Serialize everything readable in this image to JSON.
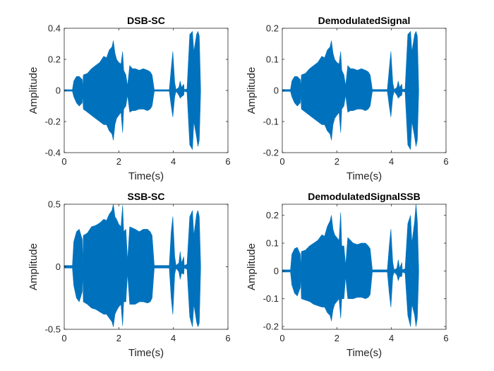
{
  "figure": {
    "background": "#ffffff",
    "signal_color": "#0072bd",
    "axes_color": "#262626"
  },
  "chart_data": [
    {
      "type": "line",
      "title": "DSB-SC",
      "xlabel": "Time(s)",
      "ylabel": "Amplitude",
      "xlim": [
        0,
        6
      ],
      "ylim": [
        -0.4,
        0.4
      ],
      "xticks": [
        0,
        2,
        4,
        6
      ],
      "xtick_labels": [
        "0",
        "2",
        "4",
        "6"
      ],
      "yticks": [
        -0.4,
        -0.2,
        0,
        0.2,
        0.4
      ],
      "ytick_labels": [
        "-0.4",
        "-0.2",
        "0",
        "0.2",
        "0.4"
      ],
      "grid": false,
      "series": [
        {
          "color": "#0072bd",
          "x": [
            0.0,
            0.3,
            0.35,
            0.45,
            0.55,
            0.66,
            0.67,
            0.7,
            0.85,
            1.0,
            1.15,
            1.3,
            1.45,
            1.55,
            1.65,
            1.75,
            1.8,
            1.86,
            1.92,
            2.0,
            2.08,
            2.14,
            2.18,
            2.26,
            2.32,
            2.4,
            2.5,
            2.6,
            2.75,
            2.9,
            3.05,
            3.15,
            3.22,
            3.3,
            3.5,
            3.7,
            3.85,
            3.92,
            3.98,
            4.05,
            4.1,
            4.2,
            4.25,
            4.3,
            4.38,
            4.4,
            4.5,
            4.6,
            4.7,
            4.75,
            4.85,
            4.9,
            4.95,
            5.0
          ],
          "upper": [
            0.005,
            0.005,
            0.06,
            0.09,
            0.09,
            0.07,
            0.005,
            0.1,
            0.11,
            0.14,
            0.16,
            0.18,
            0.22,
            0.21,
            0.26,
            0.28,
            0.32,
            0.24,
            0.2,
            0.18,
            0.17,
            0.25,
            0.13,
            0.1,
            0.03,
            0.16,
            0.14,
            0.14,
            0.13,
            0.14,
            0.13,
            0.12,
            0.1,
            0.005,
            0.005,
            0.005,
            0.005,
            0.14,
            0.25,
            0.05,
            0.005,
            0.02,
            0.06,
            0.02,
            0.04,
            0.005,
            0.01,
            0.36,
            0.38,
            0.25,
            0.36,
            0.38,
            0.35,
            0.005
          ],
          "lower": [
            -0.005,
            -0.005,
            -0.04,
            -0.08,
            -0.1,
            -0.08,
            -0.005,
            -0.12,
            -0.14,
            -0.16,
            -0.18,
            -0.2,
            -0.22,
            -0.22,
            -0.26,
            -0.28,
            -0.32,
            -0.22,
            -0.18,
            -0.16,
            -0.14,
            -0.27,
            -0.12,
            -0.1,
            -0.03,
            -0.14,
            -0.13,
            -0.13,
            -0.12,
            -0.12,
            -0.13,
            -0.12,
            -0.1,
            -0.005,
            -0.005,
            -0.005,
            -0.005,
            -0.1,
            -0.17,
            -0.04,
            -0.005,
            -0.03,
            -0.05,
            -0.04,
            -0.03,
            -0.005,
            -0.01,
            -0.35,
            -0.38,
            -0.2,
            -0.3,
            -0.36,
            -0.32,
            -0.005
          ]
        }
      ]
    },
    {
      "type": "line",
      "title": "DemodulatedSignal",
      "xlabel": "Time(s)",
      "ylabel": "Amplitude",
      "xlim": [
        0,
        6
      ],
      "ylim": [
        -0.2,
        0.2
      ],
      "xticks": [
        0,
        2,
        4,
        6
      ],
      "xtick_labels": [
        "0",
        "2",
        "4",
        "6"
      ],
      "yticks": [
        -0.2,
        -0.1,
        0,
        0.1,
        0.2
      ],
      "ytick_labels": [
        "-0.2",
        "-0.1",
        "0",
        "0.1",
        "0.2"
      ],
      "grid": false,
      "series": [
        {
          "color": "#0072bd",
          "x": [
            0.0,
            0.3,
            0.35,
            0.45,
            0.55,
            0.66,
            0.67,
            0.7,
            0.85,
            1.0,
            1.15,
            1.3,
            1.45,
            1.55,
            1.65,
            1.75,
            1.8,
            1.86,
            1.92,
            2.0,
            2.08,
            2.14,
            2.18,
            2.26,
            2.32,
            2.4,
            2.5,
            2.6,
            2.75,
            2.9,
            3.05,
            3.15,
            3.22,
            3.3,
            3.5,
            3.7,
            3.85,
            3.92,
            3.98,
            4.05,
            4.1,
            4.2,
            4.25,
            4.3,
            4.38,
            4.4,
            4.5,
            4.6,
            4.7,
            4.75,
            4.85,
            4.9,
            4.95,
            5.0
          ],
          "upper": [
            0.003,
            0.003,
            0.03,
            0.045,
            0.045,
            0.035,
            0.003,
            0.05,
            0.055,
            0.07,
            0.08,
            0.09,
            0.11,
            0.105,
            0.13,
            0.14,
            0.16,
            0.12,
            0.1,
            0.09,
            0.085,
            0.125,
            0.065,
            0.05,
            0.015,
            0.08,
            0.07,
            0.07,
            0.065,
            0.07,
            0.065,
            0.06,
            0.05,
            0.003,
            0.003,
            0.003,
            0.003,
            0.07,
            0.125,
            0.025,
            0.003,
            0.01,
            0.03,
            0.01,
            0.02,
            0.003,
            0.005,
            0.18,
            0.19,
            0.125,
            0.18,
            0.19,
            0.175,
            0.003
          ],
          "lower": [
            -0.003,
            -0.003,
            -0.02,
            -0.04,
            -0.05,
            -0.04,
            -0.003,
            -0.06,
            -0.07,
            -0.08,
            -0.09,
            -0.1,
            -0.11,
            -0.11,
            -0.13,
            -0.14,
            -0.16,
            -0.11,
            -0.09,
            -0.08,
            -0.07,
            -0.135,
            -0.06,
            -0.05,
            -0.015,
            -0.07,
            -0.065,
            -0.065,
            -0.06,
            -0.06,
            -0.065,
            -0.06,
            -0.05,
            -0.003,
            -0.003,
            -0.003,
            -0.003,
            -0.05,
            -0.085,
            -0.02,
            -0.003,
            -0.015,
            -0.025,
            -0.02,
            -0.015,
            -0.003,
            -0.005,
            -0.175,
            -0.19,
            -0.1,
            -0.15,
            -0.18,
            -0.16,
            -0.003
          ]
        }
      ]
    },
    {
      "type": "line",
      "title": "SSB-SC",
      "xlabel": "Time(s)",
      "ylabel": "Amplitude",
      "xlim": [
        0,
        6
      ],
      "ylim": [
        -0.5,
        0.5
      ],
      "xticks": [
        0,
        2,
        4,
        6
      ],
      "xtick_labels": [
        "0",
        "2",
        "4",
        "6"
      ],
      "yticks": [
        -0.5,
        0,
        0.5
      ],
      "ytick_labels": [
        "-0.5",
        "0",
        "0.5"
      ],
      "grid": false,
      "series": [
        {
          "color": "#0072bd",
          "x": [
            0.0,
            0.3,
            0.35,
            0.45,
            0.55,
            0.66,
            0.67,
            0.7,
            0.85,
            1.0,
            1.15,
            1.3,
            1.45,
            1.55,
            1.65,
            1.75,
            1.8,
            1.86,
            1.92,
            2.0,
            2.08,
            2.14,
            2.18,
            2.26,
            2.32,
            2.4,
            2.5,
            2.6,
            2.75,
            2.9,
            3.05,
            3.15,
            3.22,
            3.3,
            3.5,
            3.7,
            3.85,
            3.92,
            3.98,
            4.05,
            4.1,
            4.2,
            4.25,
            4.3,
            4.38,
            4.4,
            4.5,
            4.6,
            4.7,
            4.75,
            4.85,
            4.9,
            4.95,
            5.0
          ],
          "upper": [
            0.01,
            0.01,
            0.2,
            0.28,
            0.3,
            0.22,
            0.01,
            0.25,
            0.27,
            0.32,
            0.33,
            0.35,
            0.38,
            0.37,
            0.42,
            0.45,
            0.5,
            0.4,
            0.38,
            0.34,
            0.32,
            0.49,
            0.28,
            0.3,
            0.05,
            0.32,
            0.31,
            0.3,
            0.28,
            0.3,
            0.3,
            0.28,
            0.25,
            0.01,
            0.01,
            0.01,
            0.01,
            0.28,
            0.4,
            0.08,
            0.01,
            0.03,
            0.12,
            0.03,
            0.08,
            0.01,
            0.02,
            0.4,
            0.45,
            0.25,
            0.42,
            0.45,
            0.4,
            0.01
          ],
          "lower": [
            -0.01,
            -0.01,
            -0.15,
            -0.25,
            -0.28,
            -0.2,
            -0.01,
            -0.28,
            -0.3,
            -0.33,
            -0.34,
            -0.36,
            -0.38,
            -0.38,
            -0.41,
            -0.44,
            -0.48,
            -0.38,
            -0.35,
            -0.32,
            -0.3,
            -0.47,
            -0.28,
            -0.28,
            -0.05,
            -0.3,
            -0.3,
            -0.3,
            -0.28,
            -0.28,
            -0.29,
            -0.28,
            -0.25,
            -0.01,
            -0.01,
            -0.01,
            -0.01,
            -0.25,
            -0.38,
            -0.06,
            -0.01,
            -0.04,
            -0.1,
            -0.05,
            -0.06,
            -0.01,
            -0.02,
            -0.4,
            -0.48,
            -0.3,
            -0.44,
            -0.48,
            -0.45,
            -0.01
          ]
        }
      ]
    },
    {
      "type": "line",
      "title": "DemodulatedSignalSSB",
      "xlabel": "Time(s)",
      "ylabel": "Amplitude",
      "xlim": [
        0,
        6
      ],
      "ylim": [
        -0.21,
        0.24
      ],
      "xticks": [
        0,
        2,
        4,
        6
      ],
      "xtick_labels": [
        "0",
        "2",
        "4",
        "6"
      ],
      "yticks": [
        -0.2,
        -0.1,
        0,
        0.1,
        0.2
      ],
      "ytick_labels": [
        "-0.2",
        "-0.1",
        "0",
        "0.1",
        "0.2"
      ],
      "grid": false,
      "series": [
        {
          "color": "#0072bd",
          "x": [
            0.0,
            0.3,
            0.35,
            0.45,
            0.55,
            0.66,
            0.67,
            0.7,
            0.85,
            1.0,
            1.15,
            1.3,
            1.45,
            1.55,
            1.65,
            1.75,
            1.8,
            1.86,
            1.92,
            2.0,
            2.08,
            2.14,
            2.18,
            2.26,
            2.32,
            2.4,
            2.5,
            2.6,
            2.75,
            2.9,
            3.05,
            3.15,
            3.22,
            3.3,
            3.5,
            3.7,
            3.85,
            3.92,
            3.98,
            4.05,
            4.1,
            4.2,
            4.25,
            4.3,
            4.38,
            4.4,
            4.5,
            4.6,
            4.7,
            4.75,
            4.85,
            4.9,
            4.95,
            5.0
          ],
          "upper": [
            0.004,
            0.004,
            0.06,
            0.08,
            0.085,
            0.06,
            0.004,
            0.07,
            0.075,
            0.09,
            0.1,
            0.11,
            0.13,
            0.125,
            0.16,
            0.18,
            0.2,
            0.15,
            0.13,
            0.12,
            0.11,
            0.21,
            0.09,
            0.09,
            0.02,
            0.12,
            0.11,
            0.1,
            0.095,
            0.1,
            0.1,
            0.09,
            0.08,
            0.004,
            0.004,
            0.004,
            0.004,
            0.09,
            0.15,
            0.03,
            0.004,
            0.01,
            0.04,
            0.01,
            0.03,
            0.004,
            0.008,
            0.17,
            0.2,
            0.1,
            0.18,
            0.24,
            0.18,
            0.004
          ],
          "lower": [
            -0.004,
            -0.004,
            -0.05,
            -0.08,
            -0.09,
            -0.06,
            -0.004,
            -0.1,
            -0.105,
            -0.11,
            -0.12,
            -0.125,
            -0.13,
            -0.13,
            -0.15,
            -0.16,
            -0.18,
            -0.14,
            -0.12,
            -0.11,
            -0.1,
            -0.17,
            -0.1,
            -0.1,
            -0.02,
            -0.1,
            -0.1,
            -0.1,
            -0.095,
            -0.095,
            -0.1,
            -0.095,
            -0.085,
            -0.004,
            -0.004,
            -0.004,
            -0.004,
            -0.08,
            -0.13,
            -0.02,
            -0.004,
            -0.015,
            -0.035,
            -0.02,
            -0.02,
            -0.004,
            -0.008,
            -0.16,
            -0.2,
            -0.12,
            -0.16,
            -0.2,
            -0.17,
            -0.004
          ]
        }
      ]
    }
  ]
}
